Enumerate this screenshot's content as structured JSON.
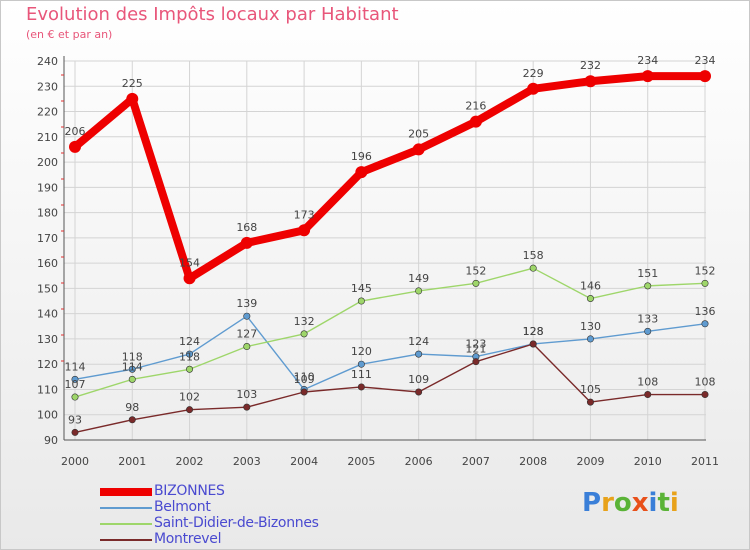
{
  "page": {
    "title": "Evolution des Impôts locaux par Habitant",
    "subtitle": "(en € et par an)",
    "logo": [
      "P",
      "r",
      "o",
      "x",
      "i",
      "t",
      "i"
    ],
    "logo_colors": [
      "#3a7fd8",
      "#e8a21a",
      "#5ab337",
      "#e8501a",
      "#3a7fd8",
      "#5ab337",
      "#e8a21a"
    ]
  },
  "chart_data": {
    "type": "line",
    "title": "Evolution des Impôts locaux par Habitant",
    "subtitle": "(en € et par an)",
    "xlabel": "",
    "ylabel": "",
    "ylim": [
      90,
      240
    ],
    "yticks": [
      90,
      100,
      110,
      120,
      130,
      140,
      150,
      160,
      170,
      180,
      190,
      200,
      210,
      220,
      230,
      240
    ],
    "grid": true,
    "legend_position": "bottom-left",
    "x": [
      "2000",
      "2001",
      "2002",
      "2003",
      "2004",
      "2005",
      "2006",
      "2007",
      "2008",
      "2009",
      "2010",
      "2011"
    ],
    "series": [
      {
        "name": "BIZONNES",
        "color": "#ee0000",
        "values": [
          206,
          225,
          154,
          168,
          173,
          196,
          205,
          216,
          229,
          232,
          234,
          234
        ],
        "highlight": true
      },
      {
        "name": "Belmont",
        "color": "#5f9bd0",
        "values": [
          114,
          118,
          124,
          139,
          110,
          120,
          124,
          123,
          128,
          130,
          133,
          136
        ],
        "highlight": false
      },
      {
        "name": "Saint-Didier-de-Bizonnes",
        "color": "#9ed66a",
        "values": [
          107,
          114,
          118,
          127,
          132,
          145,
          149,
          152,
          158,
          146,
          151,
          152
        ],
        "highlight": false
      },
      {
        "name": "Montrevel",
        "color": "#7a2a2a",
        "values": [
          93,
          98,
          102,
          103,
          109,
          111,
          109,
          121,
          128,
          105,
          108,
          108
        ],
        "highlight": false
      }
    ]
  }
}
